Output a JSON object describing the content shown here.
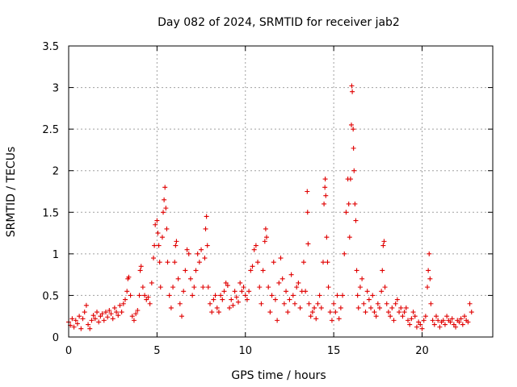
{
  "chart_data": {
    "type": "scatter",
    "title": "Day 082 of 2024, SRMTID for receiver jab2",
    "xlabel": "GPS time / hours",
    "ylabel": "SRMTID / TECUs",
    "xlim": [
      0,
      24
    ],
    "ylim": [
      0,
      3.5
    ],
    "xticks": [
      0,
      5,
      10,
      15,
      20
    ],
    "xtick_labels": [
      "0",
      "5",
      "10",
      "15",
      "20"
    ],
    "yticks": [
      0,
      0.5,
      1,
      1.5,
      2,
      2.5,
      3,
      3.5
    ],
    "ytick_labels": [
      "0",
      "0.5",
      "1",
      "1.5",
      "2",
      "2.5",
      "3",
      "3.5"
    ],
    "grid": true,
    "marker": "+",
    "color": "#e00000",
    "series": [
      {
        "name": "SRMTID",
        "points": [
          [
            0.0,
            0.18
          ],
          [
            0.1,
            0.14
          ],
          [
            0.2,
            0.22
          ],
          [
            0.3,
            0.12
          ],
          [
            0.4,
            0.2
          ],
          [
            0.5,
            0.16
          ],
          [
            0.6,
            0.25
          ],
          [
            0.7,
            0.1
          ],
          [
            0.8,
            0.22
          ],
          [
            0.9,
            0.3
          ],
          [
            1.0,
            0.38
          ],
          [
            1.1,
            0.15
          ],
          [
            1.2,
            0.1
          ],
          [
            1.3,
            0.2
          ],
          [
            1.4,
            0.26
          ],
          [
            1.5,
            0.22
          ],
          [
            1.6,
            0.3
          ],
          [
            1.7,
            0.18
          ],
          [
            1.8,
            0.25
          ],
          [
            1.9,
            0.28
          ],
          [
            2.0,
            0.2
          ],
          [
            2.1,
            0.3
          ],
          [
            2.2,
            0.24
          ],
          [
            2.3,
            0.32
          ],
          [
            2.4,
            0.28
          ],
          [
            2.5,
            0.22
          ],
          [
            2.6,
            0.35
          ],
          [
            2.7,
            0.3
          ],
          [
            2.8,
            0.26
          ],
          [
            2.9,
            0.38
          ],
          [
            3.0,
            0.3
          ],
          [
            3.1,
            0.4
          ],
          [
            3.2,
            0.45
          ],
          [
            3.3,
            0.55
          ],
          [
            3.35,
            0.7
          ],
          [
            3.4,
            0.72
          ],
          [
            3.5,
            0.5
          ],
          [
            3.6,
            0.25
          ],
          [
            3.7,
            0.2
          ],
          [
            3.8,
            0.28
          ],
          [
            3.9,
            0.32
          ],
          [
            4.0,
            0.5
          ],
          [
            4.05,
            0.8
          ],
          [
            4.1,
            0.85
          ],
          [
            4.2,
            0.6
          ],
          [
            4.3,
            0.5
          ],
          [
            4.4,
            0.45
          ],
          [
            4.5,
            0.48
          ],
          [
            4.6,
            0.4
          ],
          [
            4.7,
            0.65
          ],
          [
            4.8,
            0.95
          ],
          [
            4.85,
            1.1
          ],
          [
            4.9,
            1.35
          ],
          [
            5.0,
            1.4
          ],
          [
            5.05,
            1.25
          ],
          [
            5.1,
            1.1
          ],
          [
            5.15,
            0.9
          ],
          [
            5.2,
            0.6
          ],
          [
            5.3,
            1.2
          ],
          [
            5.35,
            1.5
          ],
          [
            5.4,
            1.65
          ],
          [
            5.45,
            1.8
          ],
          [
            5.5,
            1.55
          ],
          [
            5.55,
            1.3
          ],
          [
            5.6,
            0.9
          ],
          [
            5.7,
            0.5
          ],
          [
            5.8,
            0.35
          ],
          [
            5.9,
            0.6
          ],
          [
            6.0,
            0.9
          ],
          [
            6.05,
            1.1
          ],
          [
            6.1,
            1.15
          ],
          [
            6.2,
            0.7
          ],
          [
            6.3,
            0.4
          ],
          [
            6.4,
            0.25
          ],
          [
            6.5,
            0.55
          ],
          [
            6.6,
            0.8
          ],
          [
            6.7,
            1.05
          ],
          [
            6.8,
            1.0
          ],
          [
            6.9,
            0.7
          ],
          [
            7.0,
            0.5
          ],
          [
            7.1,
            0.6
          ],
          [
            7.2,
            0.8
          ],
          [
            7.3,
            1.0
          ],
          [
            7.4,
            0.9
          ],
          [
            7.5,
            1.05
          ],
          [
            7.6,
            0.6
          ],
          [
            7.7,
            0.95
          ],
          [
            7.75,
            1.3
          ],
          [
            7.8,
            1.45
          ],
          [
            7.85,
            1.1
          ],
          [
            7.9,
            0.6
          ],
          [
            8.0,
            0.4
          ],
          [
            8.1,
            0.3
          ],
          [
            8.2,
            0.45
          ],
          [
            8.3,
            0.5
          ],
          [
            8.4,
            0.35
          ],
          [
            8.5,
            0.3
          ],
          [
            8.6,
            0.5
          ],
          [
            8.7,
            0.45
          ],
          [
            8.8,
            0.55
          ],
          [
            8.9,
            0.65
          ],
          [
            9.0,
            0.62
          ],
          [
            9.1,
            0.35
          ],
          [
            9.2,
            0.45
          ],
          [
            9.3,
            0.38
          ],
          [
            9.4,
            0.55
          ],
          [
            9.5,
            0.48
          ],
          [
            9.6,
            0.42
          ],
          [
            9.7,
            0.65
          ],
          [
            9.8,
            0.55
          ],
          [
            9.9,
            0.6
          ],
          [
            10.0,
            0.5
          ],
          [
            10.1,
            0.45
          ],
          [
            10.2,
            0.55
          ],
          [
            10.3,
            0.8
          ],
          [
            10.4,
            0.85
          ],
          [
            10.5,
            1.05
          ],
          [
            10.6,
            1.1
          ],
          [
            10.7,
            0.9
          ],
          [
            10.8,
            0.6
          ],
          [
            10.9,
            0.4
          ],
          [
            11.0,
            0.8
          ],
          [
            11.1,
            1.15
          ],
          [
            11.15,
            1.3
          ],
          [
            11.2,
            1.2
          ],
          [
            11.3,
            0.6
          ],
          [
            11.4,
            0.3
          ],
          [
            11.5,
            0.5
          ],
          [
            11.6,
            0.9
          ],
          [
            11.7,
            0.45
          ],
          [
            11.8,
            0.2
          ],
          [
            11.9,
            0.65
          ],
          [
            12.0,
            0.95
          ],
          [
            12.1,
            0.7
          ],
          [
            12.2,
            0.4
          ],
          [
            12.3,
            0.55
          ],
          [
            12.4,
            0.3
          ],
          [
            12.5,
            0.45
          ],
          [
            12.6,
            0.75
          ],
          [
            12.7,
            0.5
          ],
          [
            12.8,
            0.4
          ],
          [
            12.9,
            0.6
          ],
          [
            13.0,
            0.65
          ],
          [
            13.1,
            0.35
          ],
          [
            13.2,
            0.55
          ],
          [
            13.3,
            0.9
          ],
          [
            13.4,
            0.55
          ],
          [
            13.5,
            1.75
          ],
          [
            13.52,
            1.5
          ],
          [
            13.55,
            1.12
          ],
          [
            13.6,
            0.4
          ],
          [
            13.7,
            0.25
          ],
          [
            13.8,
            0.3
          ],
          [
            13.9,
            0.35
          ],
          [
            14.0,
            0.22
          ],
          [
            14.1,
            0.4
          ],
          [
            14.2,
            0.5
          ],
          [
            14.3,
            0.35
          ],
          [
            14.4,
            0.9
          ],
          [
            14.45,
            1.6
          ],
          [
            14.5,
            1.8
          ],
          [
            14.52,
            1.9
          ],
          [
            14.55,
            1.7
          ],
          [
            14.6,
            1.2
          ],
          [
            14.65,
            0.9
          ],
          [
            14.7,
            0.6
          ],
          [
            14.8,
            0.3
          ],
          [
            14.9,
            0.2
          ],
          [
            15.0,
            0.4
          ],
          [
            15.1,
            0.3
          ],
          [
            15.2,
            0.5
          ],
          [
            15.3,
            0.22
          ],
          [
            15.4,
            0.35
          ],
          [
            15.5,
            0.5
          ],
          [
            15.6,
            1.0
          ],
          [
            15.7,
            1.5
          ],
          [
            15.8,
            1.9
          ],
          [
            15.85,
            1.6
          ],
          [
            15.9,
            1.2
          ],
          [
            15.95,
            1.9
          ],
          [
            16.0,
            2.55
          ],
          [
            16.02,
            3.02
          ],
          [
            16.05,
            2.95
          ],
          [
            16.1,
            2.5
          ],
          [
            16.12,
            2.27
          ],
          [
            16.15,
            2.0
          ],
          [
            16.2,
            1.6
          ],
          [
            16.25,
            1.4
          ],
          [
            16.3,
            0.8
          ],
          [
            16.35,
            0.5
          ],
          [
            16.4,
            0.35
          ],
          [
            16.5,
            0.6
          ],
          [
            16.6,
            0.7
          ],
          [
            16.7,
            0.4
          ],
          [
            16.8,
            0.3
          ],
          [
            16.9,
            0.55
          ],
          [
            17.0,
            0.45
          ],
          [
            17.1,
            0.35
          ],
          [
            17.2,
            0.5
          ],
          [
            17.3,
            0.3
          ],
          [
            17.4,
            0.25
          ],
          [
            17.5,
            0.4
          ],
          [
            17.6,
            0.35
          ],
          [
            17.7,
            0.55
          ],
          [
            17.75,
            0.8
          ],
          [
            17.8,
            1.1
          ],
          [
            17.85,
            1.15
          ],
          [
            17.9,
            0.6
          ],
          [
            18.0,
            0.4
          ],
          [
            18.1,
            0.3
          ],
          [
            18.2,
            0.25
          ],
          [
            18.3,
            0.35
          ],
          [
            18.4,
            0.2
          ],
          [
            18.5,
            0.4
          ],
          [
            18.6,
            0.45
          ],
          [
            18.7,
            0.3
          ],
          [
            18.8,
            0.35
          ],
          [
            18.9,
            0.25
          ],
          [
            19.0,
            0.3
          ],
          [
            19.1,
            0.35
          ],
          [
            19.2,
            0.2
          ],
          [
            19.3,
            0.15
          ],
          [
            19.4,
            0.22
          ],
          [
            19.5,
            0.3
          ],
          [
            19.6,
            0.25
          ],
          [
            19.7,
            0.12
          ],
          [
            19.8,
            0.18
          ],
          [
            19.9,
            0.15
          ],
          [
            20.0,
            0.1
          ],
          [
            20.1,
            0.2
          ],
          [
            20.2,
            0.25
          ],
          [
            20.3,
            0.6
          ],
          [
            20.35,
            0.8
          ],
          [
            20.4,
            1.0
          ],
          [
            20.45,
            0.7
          ],
          [
            20.5,
            0.4
          ],
          [
            20.6,
            0.2
          ],
          [
            20.7,
            0.15
          ],
          [
            20.8,
            0.25
          ],
          [
            20.9,
            0.2
          ],
          [
            21.0,
            0.12
          ],
          [
            21.1,
            0.18
          ],
          [
            21.2,
            0.2
          ],
          [
            21.3,
            0.15
          ],
          [
            21.4,
            0.25
          ],
          [
            21.5,
            0.2
          ],
          [
            21.6,
            0.18
          ],
          [
            21.7,
            0.22
          ],
          [
            21.8,
            0.15
          ],
          [
            21.9,
            0.12
          ],
          [
            22.0,
            0.2
          ],
          [
            22.1,
            0.18
          ],
          [
            22.2,
            0.22
          ],
          [
            22.3,
            0.15
          ],
          [
            22.4,
            0.25
          ],
          [
            22.5,
            0.2
          ],
          [
            22.6,
            0.18
          ],
          [
            22.7,
            0.4
          ],
          [
            22.8,
            0.3
          ]
        ]
      }
    ]
  }
}
